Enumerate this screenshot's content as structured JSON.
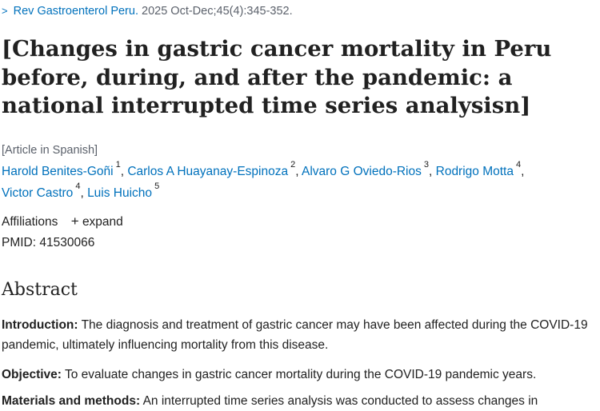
{
  "journal": {
    "name": "Rev Gastroenterol Peru.",
    "citation": "2025 Oct-Dec;45(4):345-352."
  },
  "article": {
    "title": "[Changes in gastric cancer mortality in Peru before, during, and after the pandemic: a national interrupted time series analysisn]",
    "language_note": "[Article in Spanish]"
  },
  "authors": [
    {
      "name": "Harold Benites-Goñi",
      "sup": "1"
    },
    {
      "name": "Carlos A Huayanay-Espinoza",
      "sup": "2"
    },
    {
      "name": "Alvaro G Oviedo-Rios",
      "sup": "3"
    },
    {
      "name": "Rodrigo Motta",
      "sup": "4"
    },
    {
      "name": "Victor Castro",
      "sup": "4"
    },
    {
      "name": "Luis Huicho",
      "sup": "5"
    }
  ],
  "affiliations": {
    "label": "Affiliations",
    "expand_icon": "+",
    "expand_label": "expand"
  },
  "pmid": "PMID: 41530066",
  "abstract": {
    "heading": "Abstract",
    "introduction_label": "Introduction:",
    "introduction_text": " The diagnosis and treatment of gastric cancer may have been affected during the COVID-19 pandemic, ultimately influencing mortality from this disease.",
    "objective_label": "Objective:",
    "objective_text": " To evaluate changes in gastric cancer mortality during the COVID-19 pandemic years.",
    "methods_label": "Materials and methods:",
    "methods_text": " An interrupted time series analysis was conducted to assess changes in"
  },
  "colors": {
    "link": "#0071bc",
    "text": "#212121",
    "muted": "#5b616b"
  },
  "icons": {
    "journal_chevron": "chevron-right-icon",
    "affiliation_expand": "plus-icon"
  }
}
